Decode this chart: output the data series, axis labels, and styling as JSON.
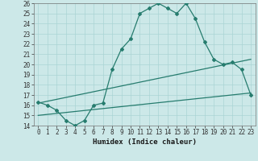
{
  "line1_x": [
    0,
    1,
    2,
    3,
    4,
    5,
    6,
    7,
    8,
    9,
    10,
    11,
    12,
    13,
    14,
    15,
    16,
    17,
    18,
    19,
    20,
    21,
    22,
    23
  ],
  "line1_y": [
    16.3,
    16.0,
    15.5,
    14.5,
    14.0,
    14.5,
    16.0,
    16.2,
    19.5,
    21.5,
    22.5,
    25.0,
    25.5,
    26.0,
    25.5,
    25.0,
    26.0,
    24.5,
    22.2,
    20.5,
    20.0,
    20.2,
    19.5,
    17.0
  ],
  "line2_x": [
    0,
    23
  ],
  "line2_y": [
    16.2,
    20.5
  ],
  "line3_x": [
    0,
    23
  ],
  "line3_y": [
    15.0,
    17.2
  ],
  "line_color": "#267c6e",
  "bg_color": "#cce8e8",
  "grid_color": "#aad4d4",
  "xlabel": "Humidex (Indice chaleur)",
  "ylim": [
    14,
    26
  ],
  "xlim": [
    -0.5,
    23.5
  ],
  "yticks": [
    14,
    15,
    16,
    17,
    18,
    19,
    20,
    21,
    22,
    23,
    24,
    25,
    26
  ],
  "xticks": [
    0,
    1,
    2,
    3,
    4,
    5,
    6,
    7,
    8,
    9,
    10,
    11,
    12,
    13,
    14,
    15,
    16,
    17,
    18,
    19,
    20,
    21,
    22,
    23
  ],
  "tick_fontsize": 5.5,
  "xlabel_fontsize": 6.5,
  "marker": "D",
  "marker_size": 2.0,
  "linewidth": 0.9
}
